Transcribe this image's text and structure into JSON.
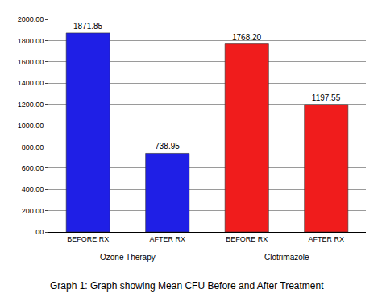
{
  "chart_data": {
    "type": "bar",
    "title": "Graph 1: Graph showing Mean CFU Before and After Treatment",
    "categories": [
      "BEFORE RX",
      "AFTER RX",
      "BEFORE RX",
      "AFTER RX"
    ],
    "groups": [
      "Ozone Therapy",
      "Ozone Therapy",
      "Clotrimazole",
      "Clotrimazole"
    ],
    "values": [
      1871.85,
      738.95,
      1768.2,
      1197.55
    ],
    "value_labels": [
      "1871.85",
      "738.95",
      "1768.20",
      "1197.55"
    ],
    "colors": [
      "#1f1fe6",
      "#1f1fe6",
      "#f01c1c",
      "#f01c1c"
    ],
    "ylim": [
      0,
      2000
    ],
    "yticks": [
      {
        "value": 0,
        "label": ".00"
      },
      {
        "value": 200,
        "label": "200.00"
      },
      {
        "value": 400,
        "label": "400.00"
      },
      {
        "value": 600,
        "label": "600.00"
      },
      {
        "value": 800,
        "label": "800.00"
      },
      {
        "value": 1000,
        "label": "1000.00"
      },
      {
        "value": 1200,
        "label": "1200.00"
      },
      {
        "value": 1400,
        "label": "1400.00"
      },
      {
        "value": 1600,
        "label": "1600.00"
      },
      {
        "value": 1800,
        "label": "1800.00"
      },
      {
        "value": 2000,
        "label": "2000.00"
      }
    ],
    "grid": true,
    "data_labels": true
  }
}
